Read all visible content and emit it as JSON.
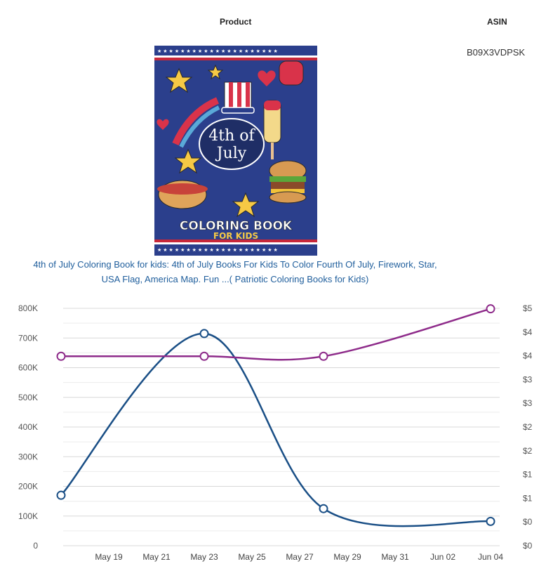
{
  "table": {
    "product_header": "Product",
    "asin_header": "ASIN",
    "asin": "B09X3VDPSK",
    "product_title_line1": "4th of July Coloring Book for kids: 4th of July Books For Kids To Color Fourth Of July, Firework, Star,",
    "product_title_line2": "USA Flag, America Map. Fun ...( Patriotic Coloring Books for Kids)"
  },
  "cover": {
    "title_line1": "4th of",
    "title_line2": "July",
    "subtitle_line1": "COLORING BOOK",
    "subtitle_line2": "FOR KIDS",
    "bg_color": "#2b3f8c",
    "stripe_color": "#c8283a"
  },
  "chart_data": {
    "type": "line",
    "categories": [
      "May 19",
      "May 21",
      "May 23",
      "May 25",
      "May 27",
      "May 29",
      "May 31",
      "Jun 02",
      "Jun 04"
    ],
    "left_axis": {
      "ticks": [
        "0",
        "100K",
        "200K",
        "300K",
        "400K",
        "500K",
        "600K",
        "700K",
        "800K"
      ],
      "ylim": [
        0,
        800000
      ]
    },
    "right_axis": {
      "ticks": [
        "$0",
        "$0",
        "$1",
        "$1",
        "$2",
        "$2",
        "$3",
        "$3",
        "$4",
        "$4",
        "$5"
      ],
      "ylim": [
        0,
        5
      ]
    },
    "series": [
      {
        "axis": "left",
        "color": "#1a4f86",
        "points": [
          {
            "x": "May 17",
            "y": 170000
          },
          {
            "x": "May 23",
            "y": 715000
          },
          {
            "x": "May 28",
            "y": 125000
          },
          {
            "x": "Jun 04",
            "y": 82000
          }
        ]
      },
      {
        "axis": "right",
        "color": "#8e2b8a",
        "points": [
          {
            "x": "May 17",
            "y": 3.99
          },
          {
            "x": "May 23",
            "y": 3.99
          },
          {
            "x": "May 28",
            "y": 3.99
          },
          {
            "x": "Jun 04",
            "y": 4.99
          }
        ]
      }
    ],
    "grid": true
  }
}
